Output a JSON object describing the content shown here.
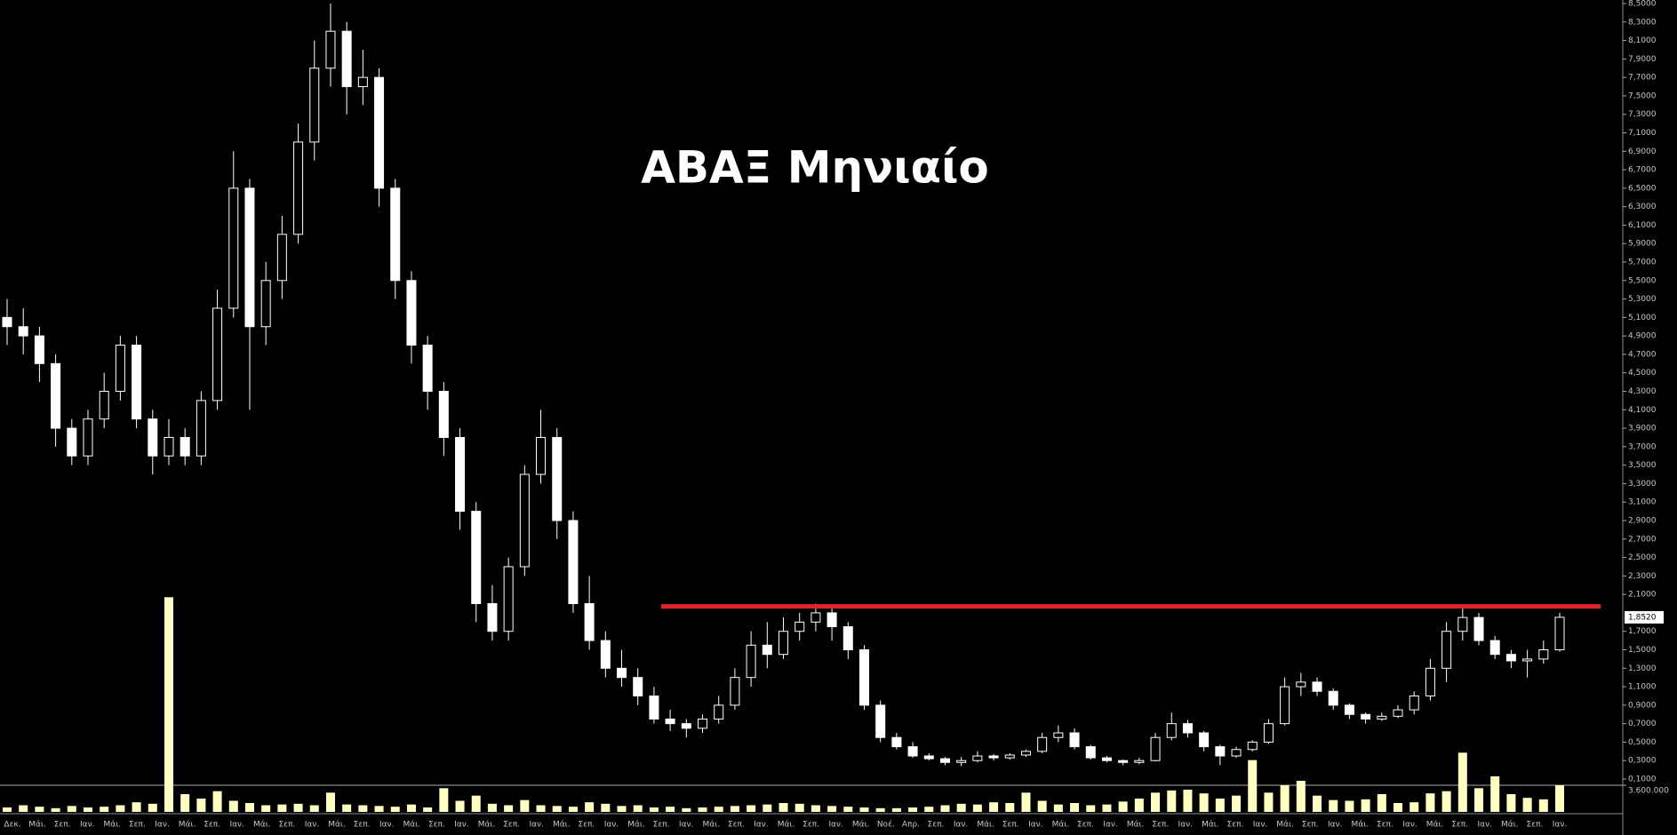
{
  "chart_data": {
    "type": "candlestick",
    "title": "ΑΒΑΞ Μηνιαίο",
    "candle_color": "#ffffff",
    "volume_color": "#ffffc0",
    "ohlc": [
      [
        5.1,
        5.3,
        4.8,
        5.0
      ],
      [
        5.0,
        5.2,
        4.7,
        4.9
      ],
      [
        4.9,
        5.0,
        4.4,
        4.6
      ],
      [
        4.6,
        4.7,
        3.7,
        3.9
      ],
      [
        3.9,
        4.0,
        3.5,
        3.6
      ],
      [
        3.6,
        4.1,
        3.5,
        4.0
      ],
      [
        4.0,
        4.5,
        3.9,
        4.3
      ],
      [
        4.3,
        4.9,
        4.2,
        4.8
      ],
      [
        4.8,
        4.9,
        3.9,
        4.0
      ],
      [
        4.0,
        4.1,
        3.4,
        3.6
      ],
      [
        3.6,
        4.0,
        3.5,
        3.8
      ],
      [
        3.8,
        3.9,
        3.5,
        3.6
      ],
      [
        3.6,
        4.3,
        3.5,
        4.2
      ],
      [
        4.2,
        5.4,
        4.1,
        5.2
      ],
      [
        5.2,
        6.9,
        5.1,
        6.5
      ],
      [
        6.5,
        6.6,
        4.1,
        5.0
      ],
      [
        5.0,
        5.7,
        4.8,
        5.5
      ],
      [
        5.5,
        6.2,
        5.3,
        6.0
      ],
      [
        6.0,
        7.2,
        5.9,
        7.0
      ],
      [
        7.0,
        8.1,
        6.8,
        7.8
      ],
      [
        7.8,
        8.5,
        7.6,
        8.2
      ],
      [
        8.2,
        8.3,
        7.3,
        7.6
      ],
      [
        7.6,
        8.0,
        7.4,
        7.7
      ],
      [
        7.7,
        7.8,
        6.3,
        6.5
      ],
      [
        6.5,
        6.6,
        5.3,
        5.5
      ],
      [
        5.5,
        5.6,
        4.6,
        4.8
      ],
      [
        4.8,
        4.9,
        4.1,
        4.3
      ],
      [
        4.3,
        4.4,
        3.6,
        3.8
      ],
      [
        3.8,
        3.9,
        2.8,
        3.0
      ],
      [
        3.0,
        3.1,
        1.8,
        2.0
      ],
      [
        2.0,
        2.2,
        1.6,
        1.7
      ],
      [
        1.7,
        2.5,
        1.6,
        2.4
      ],
      [
        2.4,
        3.5,
        2.3,
        3.4
      ],
      [
        3.4,
        4.1,
        3.3,
        3.8
      ],
      [
        3.8,
        3.9,
        2.7,
        2.9
      ],
      [
        2.9,
        3.0,
        1.9,
        2.0
      ],
      [
        2.0,
        2.3,
        1.5,
        1.6
      ],
      [
        1.6,
        1.7,
        1.2,
        1.3
      ],
      [
        1.3,
        1.5,
        1.1,
        1.2
      ],
      [
        1.2,
        1.3,
        0.9,
        1.0
      ],
      [
        1.0,
        1.1,
        0.7,
        0.75
      ],
      [
        0.75,
        0.85,
        0.62,
        0.7
      ],
      [
        0.7,
        0.75,
        0.55,
        0.65
      ],
      [
        0.65,
        0.8,
        0.6,
        0.75
      ],
      [
        0.75,
        1.0,
        0.7,
        0.9
      ],
      [
        0.9,
        1.3,
        0.85,
        1.2
      ],
      [
        1.2,
        1.7,
        1.1,
        1.55
      ],
      [
        1.55,
        1.8,
        1.3,
        1.45
      ],
      [
        1.45,
        1.85,
        1.4,
        1.7
      ],
      [
        1.7,
        1.9,
        1.6,
        1.8
      ],
      [
        1.8,
        2.0,
        1.7,
        1.9
      ],
      [
        1.9,
        1.95,
        1.6,
        1.75
      ],
      [
        1.75,
        1.8,
        1.4,
        1.5
      ],
      [
        1.5,
        1.55,
        0.85,
        0.9
      ],
      [
        0.9,
        0.95,
        0.5,
        0.55
      ],
      [
        0.55,
        0.6,
        0.42,
        0.45
      ],
      [
        0.45,
        0.5,
        0.33,
        0.35
      ],
      [
        0.35,
        0.38,
        0.3,
        0.32
      ],
      [
        0.32,
        0.34,
        0.25,
        0.28
      ],
      [
        0.28,
        0.34,
        0.24,
        0.3
      ],
      [
        0.3,
        0.4,
        0.28,
        0.35
      ],
      [
        0.35,
        0.37,
        0.3,
        0.33
      ],
      [
        0.33,
        0.38,
        0.31,
        0.36
      ],
      [
        0.36,
        0.42,
        0.34,
        0.4
      ],
      [
        0.4,
        0.6,
        0.38,
        0.55
      ],
      [
        0.55,
        0.68,
        0.5,
        0.6
      ],
      [
        0.6,
        0.65,
        0.42,
        0.45
      ],
      [
        0.45,
        0.47,
        0.31,
        0.33
      ],
      [
        0.33,
        0.35,
        0.28,
        0.3
      ],
      [
        0.3,
        0.31,
        0.25,
        0.28
      ],
      [
        0.28,
        0.33,
        0.26,
        0.3
      ],
      [
        0.3,
        0.6,
        0.29,
        0.55
      ],
      [
        0.55,
        0.82,
        0.52,
        0.7
      ],
      [
        0.7,
        0.74,
        0.55,
        0.6
      ],
      [
        0.6,
        0.62,
        0.4,
        0.45
      ],
      [
        0.45,
        0.47,
        0.25,
        0.35
      ],
      [
        0.35,
        0.45,
        0.33,
        0.42
      ],
      [
        0.42,
        0.52,
        0.4,
        0.5
      ],
      [
        0.5,
        0.75,
        0.48,
        0.7
      ],
      [
        0.7,
        1.2,
        0.68,
        1.1
      ],
      [
        1.1,
        1.25,
        1.0,
        1.15
      ],
      [
        1.15,
        1.2,
        1.0,
        1.05
      ],
      [
        1.05,
        1.08,
        0.85,
        0.9
      ],
      [
        0.9,
        0.92,
        0.75,
        0.8
      ],
      [
        0.8,
        0.82,
        0.7,
        0.75
      ],
      [
        0.75,
        0.82,
        0.73,
        0.78
      ],
      [
        0.78,
        0.9,
        0.76,
        0.85
      ],
      [
        0.85,
        1.05,
        0.8,
        1.0
      ],
      [
        1.0,
        1.4,
        0.95,
        1.3
      ],
      [
        1.3,
        1.8,
        1.15,
        1.7
      ],
      [
        1.7,
        1.95,
        1.6,
        1.85
      ],
      [
        1.85,
        1.9,
        1.55,
        1.6
      ],
      [
        1.6,
        1.65,
        1.4,
        1.45
      ],
      [
        1.45,
        1.5,
        1.3,
        1.38
      ],
      [
        1.38,
        1.5,
        1.2,
        1.4
      ],
      [
        1.4,
        1.6,
        1.35,
        1.5
      ],
      [
        1.5,
        1.9,
        1.48,
        1.852
      ]
    ],
    "volume": [
      600000,
      900000,
      700000,
      500000,
      800000,
      600000,
      700000,
      900000,
      1300000,
      1100000,
      29000000,
      2400000,
      1800000,
      2800000,
      1500000,
      1200000,
      900000,
      1000000,
      1100000,
      900000,
      2600000,
      1000000,
      900000,
      800000,
      700000,
      1000000,
      600000,
      3200000,
      1500000,
      2200000,
      1100000,
      900000,
      1600000,
      900000,
      800000,
      700000,
      1300000,
      1100000,
      800000,
      900000,
      600000,
      700000,
      500000,
      600000,
      700000,
      800000,
      900000,
      1000000,
      1200000,
      1100000,
      900000,
      800000,
      700000,
      600000,
      500000,
      500000,
      600000,
      700000,
      900000,
      1100000,
      1000000,
      1300000,
      1200000,
      2600000,
      1500000,
      1000000,
      1200000,
      900000,
      1000000,
      1400000,
      1800000,
      2600000,
      2900000,
      3000000,
      2500000,
      1800000,
      2200000,
      7000000,
      2600000,
      3600000,
      4200000,
      2200000,
      1600000,
      1500000,
      1700000,
      2400000,
      1200000,
      1300000,
      2500000,
      2800000,
      8000000,
      3200000,
      4800000,
      2400000,
      1900000,
      1700000,
      3600000
    ],
    "ylim": [
      0.1,
      8.5
    ],
    "yticks": [
      {
        "value": 8.5,
        "label": "8,5000"
      },
      {
        "value": 8.3,
        "label": "8,3000"
      },
      {
        "value": 8.1,
        "label": "8,1000"
      },
      {
        "value": 7.9,
        "label": "7,9000"
      },
      {
        "value": 7.7,
        "label": "7,7000"
      },
      {
        "value": 7.5,
        "label": "7,5000"
      },
      {
        "value": 7.3,
        "label": "7,3000"
      },
      {
        "value": 7.1,
        "label": "7,1000"
      },
      {
        "value": 6.9,
        "label": "6,9000"
      },
      {
        "value": 6.7,
        "label": "6,7000"
      },
      {
        "value": 6.5,
        "label": "6,5000"
      },
      {
        "value": 6.3,
        "label": "6,3000"
      },
      {
        "value": 6.1,
        "label": "6,1000"
      },
      {
        "value": 5.9,
        "label": "5,9000"
      },
      {
        "value": 5.7,
        "label": "5,7000"
      },
      {
        "value": 5.5,
        "label": "5,5000"
      },
      {
        "value": 5.3,
        "label": "5,3000"
      },
      {
        "value": 5.1,
        "label": "5,1000"
      },
      {
        "value": 4.9,
        "label": "4,9000"
      },
      {
        "value": 4.7,
        "label": "4,7000"
      },
      {
        "value": 4.5,
        "label": "4,5000"
      },
      {
        "value": 4.3,
        "label": "4,3000"
      },
      {
        "value": 4.1,
        "label": "4,1000"
      },
      {
        "value": 3.9,
        "label": "3,9000"
      },
      {
        "value": 3.7,
        "label": "3,7000"
      },
      {
        "value": 3.5,
        "label": "3,5000"
      },
      {
        "value": 3.3,
        "label": "3,3000"
      },
      {
        "value": 3.1,
        "label": "3,1000"
      },
      {
        "value": 2.9,
        "label": "2,9000"
      },
      {
        "value": 2.7,
        "label": "2,7000"
      },
      {
        "value": 2.5,
        "label": "2,5000"
      },
      {
        "value": 2.3,
        "label": "2,3000"
      },
      {
        "value": 2.1,
        "label": "2,1000"
      },
      {
        "value": 1.7,
        "label": "1,7000"
      },
      {
        "value": 1.5,
        "label": "1,5000"
      },
      {
        "value": 1.3,
        "label": "1,3000"
      },
      {
        "value": 1.1,
        "label": "1,1000"
      },
      {
        "value": 0.9,
        "label": "0,9000"
      },
      {
        "value": 0.7,
        "label": "0,7000"
      },
      {
        "value": 0.5,
        "label": "0,5000"
      },
      {
        "value": 0.3,
        "label": "0,3000"
      },
      {
        "value": 0.1,
        "label": "0,1000"
      }
    ],
    "vlim": [
      0,
      3600000
    ],
    "vticks": [
      {
        "value": 3600000,
        "label": "3.600.000"
      }
    ],
    "last_label": {
      "value": 1.852,
      "label": "1,8520"
    },
    "resistance": {
      "value": 1.97,
      "color": "#e0242b"
    },
    "xtick_labels": [
      "Δεκ.",
      "Μάι.",
      "Σεπ.",
      "Ιαν.",
      "Μάι.",
      "Σεπ.",
      "Ιαν.",
      "Μάι.",
      "Σεπ.",
      "Ιαν.",
      "Μάι.",
      "Σεπ.",
      "Ιαν.",
      "Μάι.",
      "Σεπ.",
      "Ιαν.",
      "Μάι.",
      "Σεπ.",
      "Ιαν.",
      "Μάι.",
      "Σεπ.",
      "Ιαν.",
      "Μάι.",
      "Σεπ.",
      "Ιαν.",
      "Μάι.",
      "Σεπ.",
      "Ιαν.",
      "Μάι.",
      "Σεπ.",
      "Ιαν.",
      "Μάι.",
      "Σεπ.",
      "Ιαν.",
      "Μάι.",
      "Νοέ.",
      "Απρ.",
      "Σεπ.",
      "Ιαν.",
      "Μάι.",
      "Σεπ.",
      "Ιαν.",
      "Μάι.",
      "Σεπ.",
      "Ιαν.",
      "Μάι.",
      "Σεπ.",
      "Ιαν.",
      "Μάι.",
      "Σεπ.",
      "Ιαν.",
      "Μάι.",
      "Σεπ.",
      "Ιαν.",
      "Μάι.",
      "Σεπ.",
      "Ιαν.",
      "Μάι.",
      "Σεπ.",
      "Ιαν.",
      "Μάι.",
      "Σεπ.",
      "Ιαν."
    ]
  }
}
